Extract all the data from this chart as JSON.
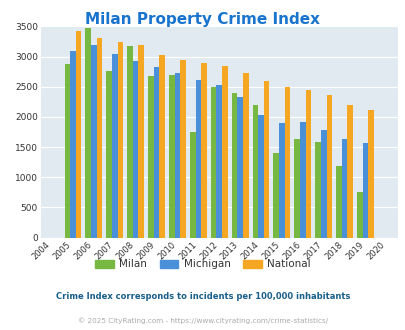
{
  "title": "Milan Property Crime Index",
  "title_color": "#1874CD",
  "years": [
    2004,
    2005,
    2006,
    2007,
    2008,
    2009,
    2010,
    2011,
    2012,
    2013,
    2014,
    2015,
    2016,
    2017,
    2018,
    2019,
    2020
  ],
  "milan": [
    0,
    2880,
    3470,
    2760,
    3180,
    2680,
    2700,
    1750,
    2500,
    2390,
    2200,
    1400,
    1640,
    1590,
    1190,
    760,
    0
  ],
  "michigan": [
    0,
    3090,
    3190,
    3040,
    2930,
    2820,
    2720,
    2620,
    2530,
    2330,
    2040,
    1900,
    1920,
    1790,
    1630,
    1570,
    0
  ],
  "national": [
    0,
    3420,
    3310,
    3240,
    3200,
    3020,
    2950,
    2900,
    2850,
    2730,
    2600,
    2490,
    2450,
    2370,
    2200,
    2110,
    0
  ],
  "milan_color": "#77b843",
  "michigan_color": "#4a90d9",
  "national_color": "#f5a623",
  "bg_color": "#e0eaf0",
  "grid_color": "#ffffff",
  "ylim": [
    0,
    3500
  ],
  "yticks": [
    0,
    500,
    1000,
    1500,
    2000,
    2500,
    3000,
    3500
  ],
  "legend_labels": [
    "Milan",
    "Michigan",
    "National"
  ],
  "footnote1": "Crime Index corresponds to incidents per 100,000 inhabitants",
  "footnote2": "© 2025 CityRating.com - https://www.cityrating.com/crime-statistics/",
  "footnote1_color": "#1a5f8a",
  "footnote2_color": "#aaaaaa",
  "bar_width": 0.27
}
